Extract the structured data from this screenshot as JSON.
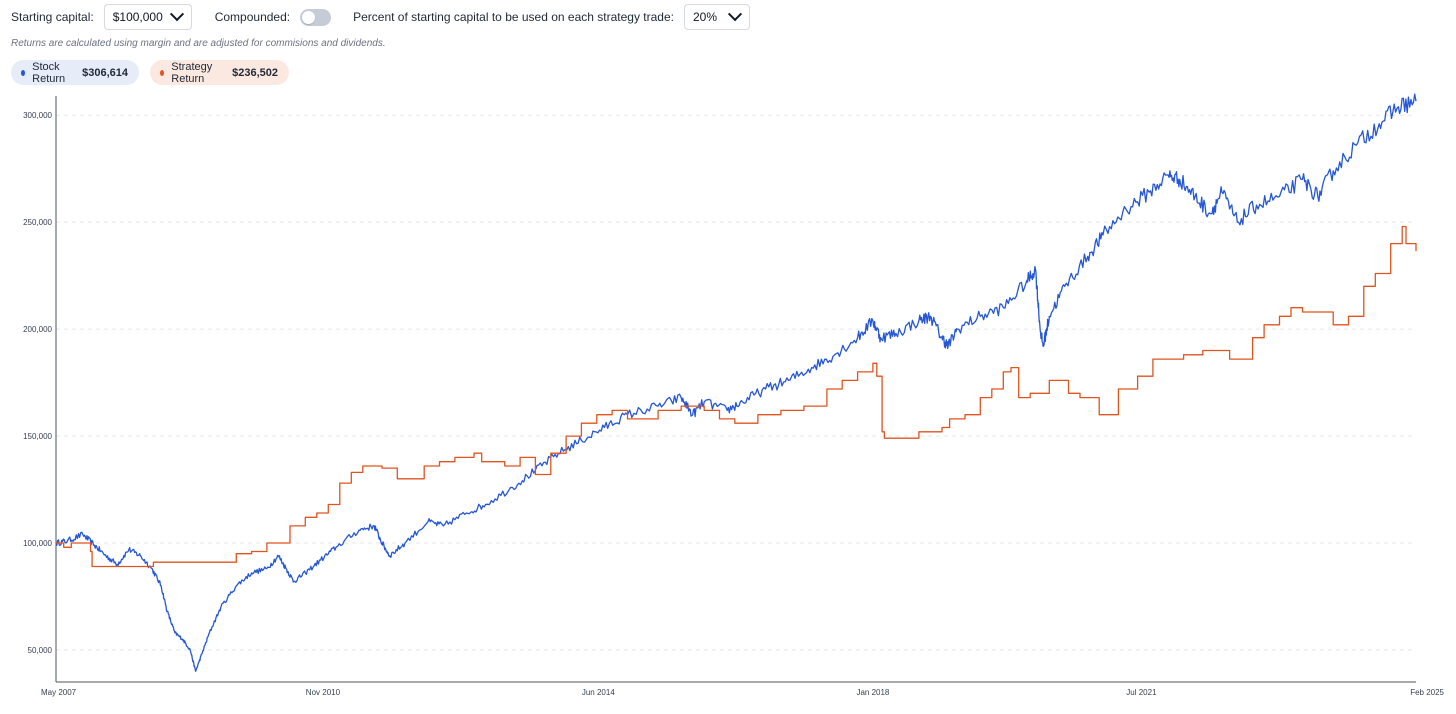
{
  "controls": {
    "capital_label": "Starting capital:",
    "capital_value": "$100,000",
    "compounded_label": "Compounded:",
    "compounded_on": false,
    "percent_label": "Percent of starting capital to be used on each strategy trade:",
    "percent_value": "20%"
  },
  "note": "Returns are calculated using margin and are adjusted for commisions and dividends.",
  "legend": [
    {
      "name": "Stock Return",
      "value": "$306,614",
      "color": "#2456d6",
      "bg": "#e6ecf8"
    },
    {
      "name": "Strategy Return",
      "value": "$236,502",
      "color": "#e0541f",
      "bg": "#fbe9e1"
    }
  ],
  "chart_data": {
    "type": "line",
    "x_unit": "year",
    "xlim": [
      2007.35,
      2025.08
    ],
    "ylim": [
      35000,
      309000
    ],
    "yticks": [
      {
        "value": 50000,
        "label": "50,000"
      },
      {
        "value": 100000,
        "label": "100,000"
      },
      {
        "value": 150000,
        "label": "150,000"
      },
      {
        "value": 200000,
        "label": "200,000"
      },
      {
        "value": 250000,
        "label": "250,000"
      },
      {
        "value": 300000,
        "label": "300,000"
      }
    ],
    "xticks": [
      {
        "value": 2007.35,
        "label": "May 2007"
      },
      {
        "value": 2010.83,
        "label": "Nov 2010"
      },
      {
        "value": 2014.42,
        "label": "Jun 2014"
      },
      {
        "value": 2018.0,
        "label": "Jan 2018"
      },
      {
        "value": 2021.5,
        "label": "Jul 2021"
      },
      {
        "value": 2025.08,
        "label": "Feb 2025"
      }
    ],
    "grid": true,
    "series": [
      {
        "name": "Stock Return",
        "color": "#2456d6",
        "points": [
          [
            2007.35,
            100000
          ],
          [
            2007.5,
            101000
          ],
          [
            2007.7,
            104000
          ],
          [
            2007.85,
            99000
          ],
          [
            2008.0,
            94000
          ],
          [
            2008.15,
            90000
          ],
          [
            2008.3,
            97000
          ],
          [
            2008.45,
            94000
          ],
          [
            2008.6,
            88000
          ],
          [
            2008.72,
            80000
          ],
          [
            2008.8,
            68000
          ],
          [
            2008.9,
            58000
          ],
          [
            2009.0,
            55000
          ],
          [
            2009.1,
            50000
          ],
          [
            2009.17,
            40000
          ],
          [
            2009.25,
            48000
          ],
          [
            2009.35,
            58000
          ],
          [
            2009.5,
            70000
          ],
          [
            2009.7,
            80000
          ],
          [
            2009.9,
            86000
          ],
          [
            2010.1,
            88000
          ],
          [
            2010.25,
            94000
          ],
          [
            2010.35,
            88000
          ],
          [
            2010.45,
            82000
          ],
          [
            2010.6,
            86000
          ],
          [
            2010.8,
            92000
          ],
          [
            2011.0,
            98000
          ],
          [
            2011.3,
            106000
          ],
          [
            2011.5,
            108000
          ],
          [
            2011.6,
            100000
          ],
          [
            2011.7,
            94000
          ],
          [
            2011.9,
            100000
          ],
          [
            2012.2,
            110000
          ],
          [
            2012.4,
            108000
          ],
          [
            2012.7,
            114000
          ],
          [
            2012.95,
            118000
          ],
          [
            2013.3,
            126000
          ],
          [
            2013.6,
            134000
          ],
          [
            2013.9,
            142000
          ],
          [
            2014.2,
            148000
          ],
          [
            2014.5,
            154000
          ],
          [
            2014.8,
            160000
          ],
          [
            2015.2,
            164000
          ],
          [
            2015.5,
            168000
          ],
          [
            2015.65,
            160000
          ],
          [
            2015.8,
            166000
          ],
          [
            2016.1,
            162000
          ],
          [
            2016.3,
            166000
          ],
          [
            2016.6,
            172000
          ],
          [
            2016.9,
            176000
          ],
          [
            2017.2,
            182000
          ],
          [
            2017.5,
            188000
          ],
          [
            2017.8,
            196000
          ],
          [
            2018.0,
            204000
          ],
          [
            2018.1,
            196000
          ],
          [
            2018.3,
            198000
          ],
          [
            2018.6,
            204000
          ],
          [
            2018.75,
            206000
          ],
          [
            2018.9,
            196000
          ],
          [
            2018.98,
            192000
          ],
          [
            2019.1,
            200000
          ],
          [
            2019.4,
            206000
          ],
          [
            2019.7,
            210000
          ],
          [
            2020.0,
            222000
          ],
          [
            2020.12,
            228000
          ],
          [
            2020.18,
            200000
          ],
          [
            2020.22,
            192000
          ],
          [
            2020.3,
            206000
          ],
          [
            2020.5,
            220000
          ],
          [
            2020.8,
            234000
          ],
          [
            2021.0,
            244000
          ],
          [
            2021.3,
            256000
          ],
          [
            2021.6,
            264000
          ],
          [
            2021.85,
            272000
          ],
          [
            2022.0,
            270000
          ],
          [
            2022.2,
            262000
          ],
          [
            2022.4,
            254000
          ],
          [
            2022.55,
            264000
          ],
          [
            2022.75,
            250000
          ],
          [
            2023.0,
            258000
          ],
          [
            2023.3,
            262000
          ],
          [
            2023.6,
            270000
          ],
          [
            2023.8,
            262000
          ],
          [
            2024.0,
            274000
          ],
          [
            2024.3,
            286000
          ],
          [
            2024.6,
            296000
          ],
          [
            2024.85,
            304000
          ],
          [
            2025.08,
            306614
          ]
        ]
      },
      {
        "name": "Strategy Return",
        "color": "#e0541f",
        "points": [
          [
            2007.35,
            100000
          ],
          [
            2007.45,
            98000
          ],
          [
            2007.55,
            100000
          ],
          [
            2007.65,
            100000
          ],
          [
            2007.8,
            96000
          ],
          [
            2007.82,
            89000
          ],
          [
            2008.6,
            89000
          ],
          [
            2008.62,
            91000
          ],
          [
            2009.6,
            91000
          ],
          [
            2009.7,
            95000
          ],
          [
            2009.9,
            96000
          ],
          [
            2010.1,
            100000
          ],
          [
            2010.4,
            108000
          ],
          [
            2010.6,
            112000
          ],
          [
            2010.75,
            114000
          ],
          [
            2010.9,
            118000
          ],
          [
            2011.05,
            128000
          ],
          [
            2011.2,
            133000
          ],
          [
            2011.35,
            136000
          ],
          [
            2011.6,
            135000
          ],
          [
            2011.8,
            130000
          ],
          [
            2012.0,
            130000
          ],
          [
            2012.15,
            136000
          ],
          [
            2012.35,
            138000
          ],
          [
            2012.55,
            140000
          ],
          [
            2012.8,
            142000
          ],
          [
            2012.9,
            138000
          ],
          [
            2013.2,
            136000
          ],
          [
            2013.4,
            140000
          ],
          [
            2013.6,
            132000
          ],
          [
            2013.8,
            142000
          ],
          [
            2014.0,
            150000
          ],
          [
            2014.2,
            156000
          ],
          [
            2014.4,
            160000
          ],
          [
            2014.6,
            162000
          ],
          [
            2014.8,
            158000
          ],
          [
            2015.0,
            158000
          ],
          [
            2015.2,
            162000
          ],
          [
            2015.5,
            164000
          ],
          [
            2015.8,
            162000
          ],
          [
            2016.0,
            158000
          ],
          [
            2016.2,
            156000
          ],
          [
            2016.5,
            160000
          ],
          [
            2016.8,
            162000
          ],
          [
            2017.1,
            164000
          ],
          [
            2017.4,
            172000
          ],
          [
            2017.6,
            176000
          ],
          [
            2017.8,
            180000
          ],
          [
            2018.0,
            184000
          ],
          [
            2018.05,
            178000
          ],
          [
            2018.12,
            152000
          ],
          [
            2018.15,
            149000
          ],
          [
            2018.5,
            149000
          ],
          [
            2018.6,
            152000
          ],
          [
            2018.9,
            154000
          ],
          [
            2019.0,
            158000
          ],
          [
            2019.2,
            160000
          ],
          [
            2019.4,
            168000
          ],
          [
            2019.55,
            172000
          ],
          [
            2019.7,
            180000
          ],
          [
            2019.8,
            182000
          ],
          [
            2019.9,
            168000
          ],
          [
            2020.05,
            170000
          ],
          [
            2020.3,
            176000
          ],
          [
            2020.55,
            170000
          ],
          [
            2020.7,
            168000
          ],
          [
            2020.95,
            160000
          ],
          [
            2021.2,
            172000
          ],
          [
            2021.45,
            178000
          ],
          [
            2021.65,
            186000
          ],
          [
            2021.85,
            186000
          ],
          [
            2022.05,
            188000
          ],
          [
            2022.3,
            190000
          ],
          [
            2022.55,
            190000
          ],
          [
            2022.65,
            186000
          ],
          [
            2022.9,
            186000
          ],
          [
            2022.95,
            196000
          ],
          [
            2023.1,
            202000
          ],
          [
            2023.3,
            206000
          ],
          [
            2023.45,
            210000
          ],
          [
            2023.6,
            208000
          ],
          [
            2023.9,
            208000
          ],
          [
            2024.0,
            202000
          ],
          [
            2024.2,
            206000
          ],
          [
            2024.4,
            220000
          ],
          [
            2024.55,
            226000
          ],
          [
            2024.75,
            240000
          ],
          [
            2024.9,
            248000
          ],
          [
            2024.95,
            240000
          ],
          [
            2025.08,
            236502
          ]
        ]
      }
    ]
  }
}
